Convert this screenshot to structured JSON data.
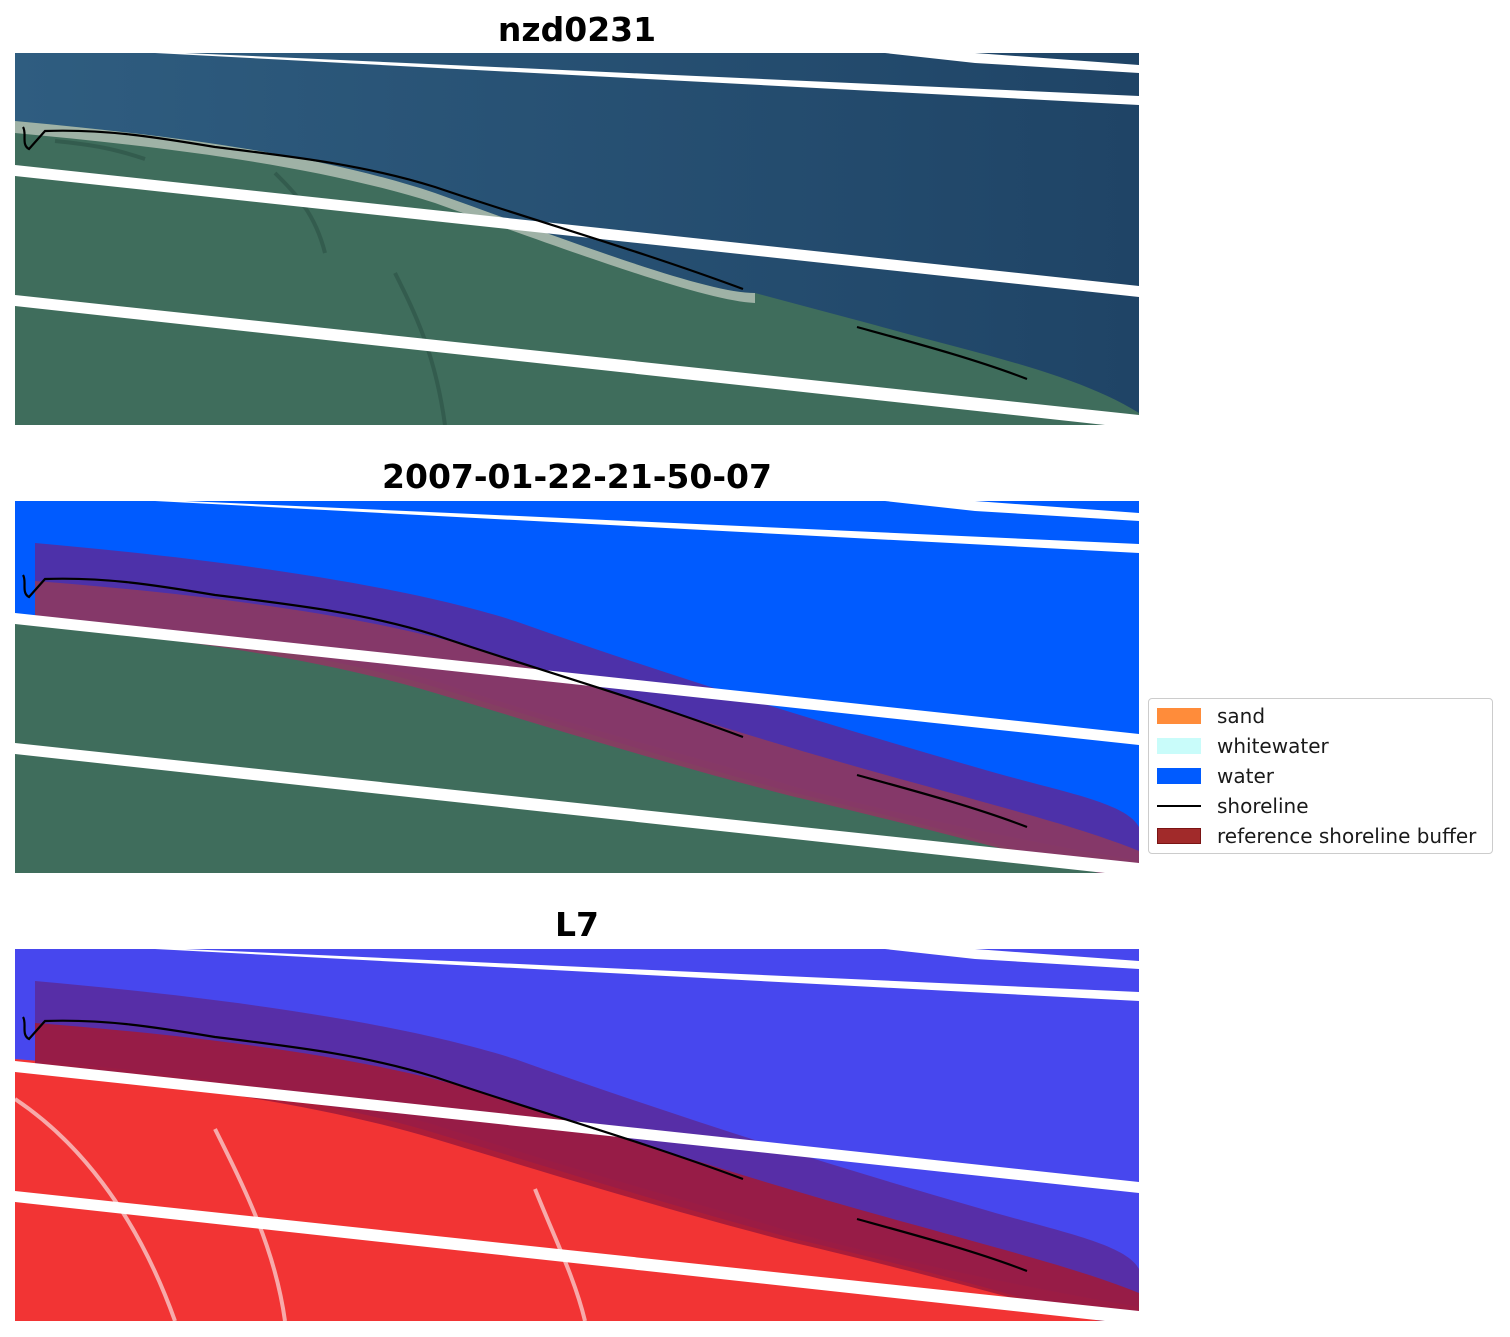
{
  "panels": [
    {
      "title": "nzd0231",
      "kind": "rgb"
    },
    {
      "title": "2007-01-22-21-50-07",
      "kind": "classified"
    },
    {
      "title": "L7",
      "kind": "index"
    }
  ],
  "legend": {
    "items": [
      {
        "label": "sand",
        "type": "patch",
        "color": "#ff8c3a"
      },
      {
        "label": "whitewater",
        "type": "patch",
        "color": "#c9fcfa"
      },
      {
        "label": "water",
        "type": "patch",
        "color": "#005bff"
      },
      {
        "label": "shoreline",
        "type": "line",
        "color": "#000000"
      },
      {
        "label": "reference shoreline buffer",
        "type": "patch",
        "color": "#a12a2a",
        "edge": "#7a1414"
      }
    ]
  },
  "colors": {
    "sea": "#2d5a7c",
    "land": "#3f6d5c",
    "classified_water": "#005bff",
    "buffer_over_water": "#5a2a9a",
    "buffer_over_land": "#8c3a62",
    "index_water": "#3c3cf0",
    "index_land": "#f23434",
    "shoreline": "#000000"
  }
}
